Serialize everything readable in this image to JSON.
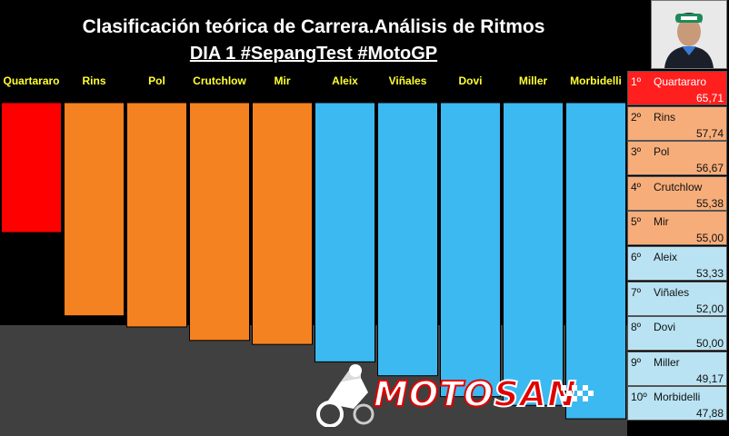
{
  "header": {
    "title": "Clasificación teórica de Carrera.Análisis de Ritmos",
    "subtitle": "DIA 1 #SepangTest #MotoGP"
  },
  "avatar": {
    "icon": "rider-portrait-icon"
  },
  "colors": {
    "first": "#ff0000",
    "orange": "#f58220",
    "cyan": "#3cb9f0",
    "floor": "#404040",
    "label": "#ffff33",
    "standings_first": "#ff1f1f",
    "standings_orange": "#f7ad7a",
    "standings_cyan": "#b9e3f3"
  },
  "chart_data": {
    "type": "bar",
    "categories": [
      "Quartararo",
      "Rins",
      "Pol",
      "Crutchlow",
      "Mir",
      "Aleix",
      "Viñales",
      "Dovi",
      "Miller",
      "Morbidelli"
    ],
    "values": [
      65.71,
      57.74,
      56.67,
      55.38,
      55.0,
      53.33,
      52.0,
      50.0,
      49.17,
      47.88
    ],
    "bar_colors": [
      "#ff0000",
      "#f58220",
      "#f58220",
      "#f58220",
      "#f58220",
      "#3cb9f0",
      "#3cb9f0",
      "#3cb9f0",
      "#3cb9f0",
      "#3cb9f0"
    ],
    "legend": "right"
  },
  "standings": [
    {
      "pos": "1º",
      "name": "Quartararo",
      "value": "65,71",
      "color": "#ff1f1f"
    },
    {
      "pos": "2º",
      "name": "Rins",
      "value": "57,74",
      "color": "#f7ad7a"
    },
    {
      "pos": "3º",
      "name": "Pol",
      "value": "56,67",
      "color": "#f7ad7a"
    },
    {
      "pos": "4º",
      "name": "Crutchlow",
      "value": "55,38",
      "color": "#f7ad7a"
    },
    {
      "pos": "5º",
      "name": "Mir",
      "value": "55,00",
      "color": "#f7ad7a"
    },
    {
      "pos": "6º",
      "name": "Aleix",
      "value": "53,33",
      "color": "#b9e3f3"
    },
    {
      "pos": "7º",
      "name": "Viñales",
      "value": "52,00",
      "color": "#b9e3f3"
    },
    {
      "pos": "8º",
      "name": "Dovi",
      "value": "50,00",
      "color": "#b9e3f3"
    },
    {
      "pos": "9º",
      "name": "Miller",
      "value": "49,17",
      "color": "#b9e3f3"
    },
    {
      "pos": "10º",
      "name": "Morbidelli",
      "value": "47,88",
      "color": "#b9e3f3"
    }
  ],
  "logo": {
    "text_white": "MOTO",
    "text_red": "SAN",
    "icon": "motorbike-rider-icon"
  }
}
